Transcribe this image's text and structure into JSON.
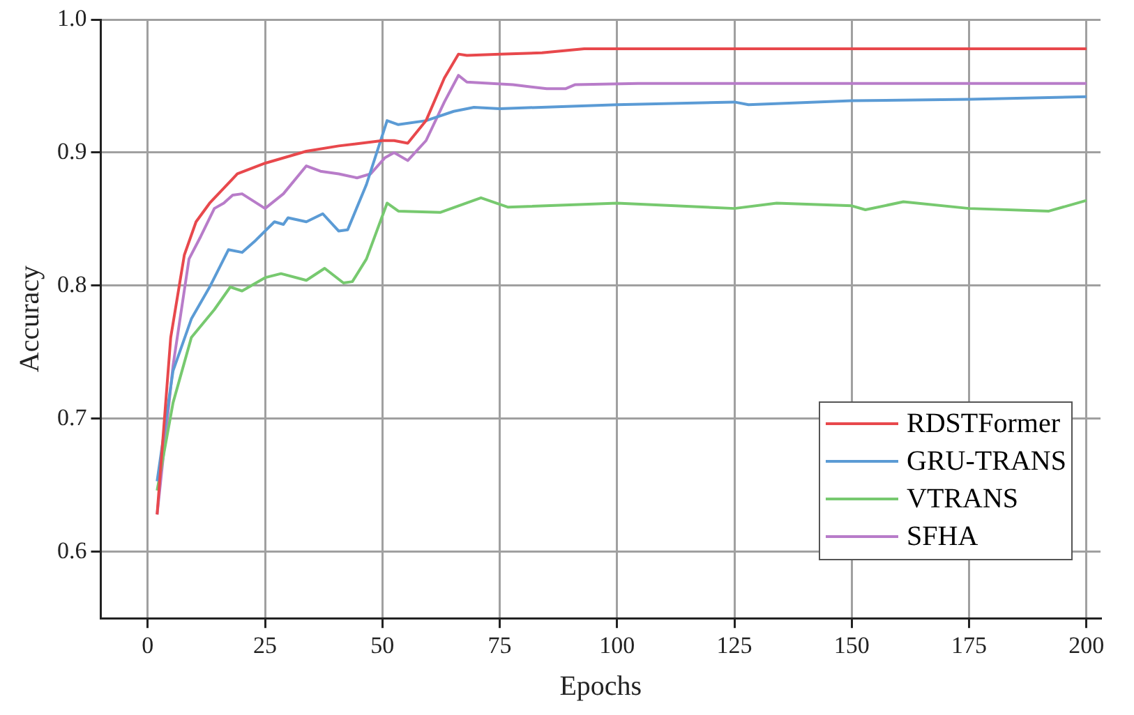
{
  "chart_data": {
    "type": "line",
    "xlabel": "Epochs",
    "ylabel": "Accuracy",
    "xlim": [
      -10,
      203
    ],
    "xticks": [
      0,
      25,
      50,
      75,
      100,
      125,
      150,
      175,
      200
    ],
    "ylim": [
      0.55,
      1.0
    ],
    "yticks": [
      0.6,
      0.7,
      0.8,
      0.9,
      {
        "value": 1,
        "label": "1.0"
      }
    ],
    "grid": true,
    "legend": "bottom right",
    "marker": "none",
    "line_style": "solid",
    "series": [
      {
        "name": "RDSTFormer",
        "color": "#e8484c",
        "x": [
          2,
          4.9,
          7.8,
          10.3,
          13.2,
          19.1,
          25,
          33.8,
          40.7,
          50,
          52.5,
          55.4,
          59.3,
          63.2,
          66.2,
          68,
          75,
          84,
          93,
          100,
          125,
          150,
          175,
          200
        ],
        "values": [
          0.628,
          0.761,
          0.823,
          0.848,
          0.862,
          0.884,
          0.892,
          0.901,
          0.905,
          0.909,
          0.909,
          0.907,
          0.924,
          0.956,
          0.974,
          0.973,
          0.974,
          0.975,
          0.978,
          0.978,
          0.978,
          0.978,
          0.978,
          0.978
        ]
      },
      {
        "name": "GRU-TRANS",
        "color": "#5b9bd5",
        "x": [
          2,
          5.4,
          9.3,
          13.2,
          17.2,
          20.1,
          23,
          27,
          28.9,
          29.9,
          33.8,
          37.3,
          40.7,
          42.6,
          46.6,
          51,
          53.4,
          59.3,
          65.2,
          69.5,
          75,
          100,
          125,
          128,
          150,
          175,
          200
        ],
        "values": [
          0.653,
          0.736,
          0.775,
          0.799,
          0.827,
          0.825,
          0.834,
          0.848,
          0.846,
          0.851,
          0.848,
          0.854,
          0.841,
          0.842,
          0.876,
          0.924,
          0.921,
          0.924,
          0.931,
          0.934,
          0.933,
          0.936,
          0.938,
          0.936,
          0.939,
          0.94,
          0.942
        ]
      },
      {
        "name": "VTRANS",
        "color": "#77c96f",
        "x": [
          2,
          5.4,
          9.3,
          14.2,
          17.6,
          20.1,
          25,
          28.4,
          33.8,
          37.7,
          41.7,
          43.6,
          46.6,
          51,
          53.4,
          62.3,
          71,
          76.7,
          100,
          125,
          134,
          150,
          152.9,
          161,
          175,
          192,
          200
        ],
        "values": [
          0.646,
          0.712,
          0.761,
          0.782,
          0.799,
          0.796,
          0.806,
          0.809,
          0.804,
          0.813,
          0.802,
          0.803,
          0.82,
          0.862,
          0.856,
          0.855,
          0.866,
          0.859,
          0.862,
          0.858,
          0.862,
          0.86,
          0.857,
          0.863,
          0.858,
          0.856,
          0.864
        ]
      },
      {
        "name": "SFHA",
        "color": "#b87cc9",
        "x": [
          2,
          5.4,
          8.8,
          11.3,
          14.2,
          16.2,
          18.1,
          20.1,
          25,
          28.9,
          33.8,
          36.8,
          40.7,
          44.6,
          47.5,
          50.5,
          52.5,
          55.4,
          59.3,
          63.2,
          66.2,
          68,
          77.8,
          85,
          89,
          91,
          104.5,
          150,
          200
        ],
        "values": [
          0.628,
          0.74,
          0.82,
          0.837,
          0.858,
          0.862,
          0.868,
          0.869,
          0.858,
          0.869,
          0.89,
          0.886,
          0.884,
          0.881,
          0.884,
          0.896,
          0.9,
          0.894,
          0.909,
          0.938,
          0.958,
          0.953,
          0.951,
          0.948,
          0.948,
          0.951,
          0.952,
          0.952,
          0.952
        ]
      }
    ]
  }
}
